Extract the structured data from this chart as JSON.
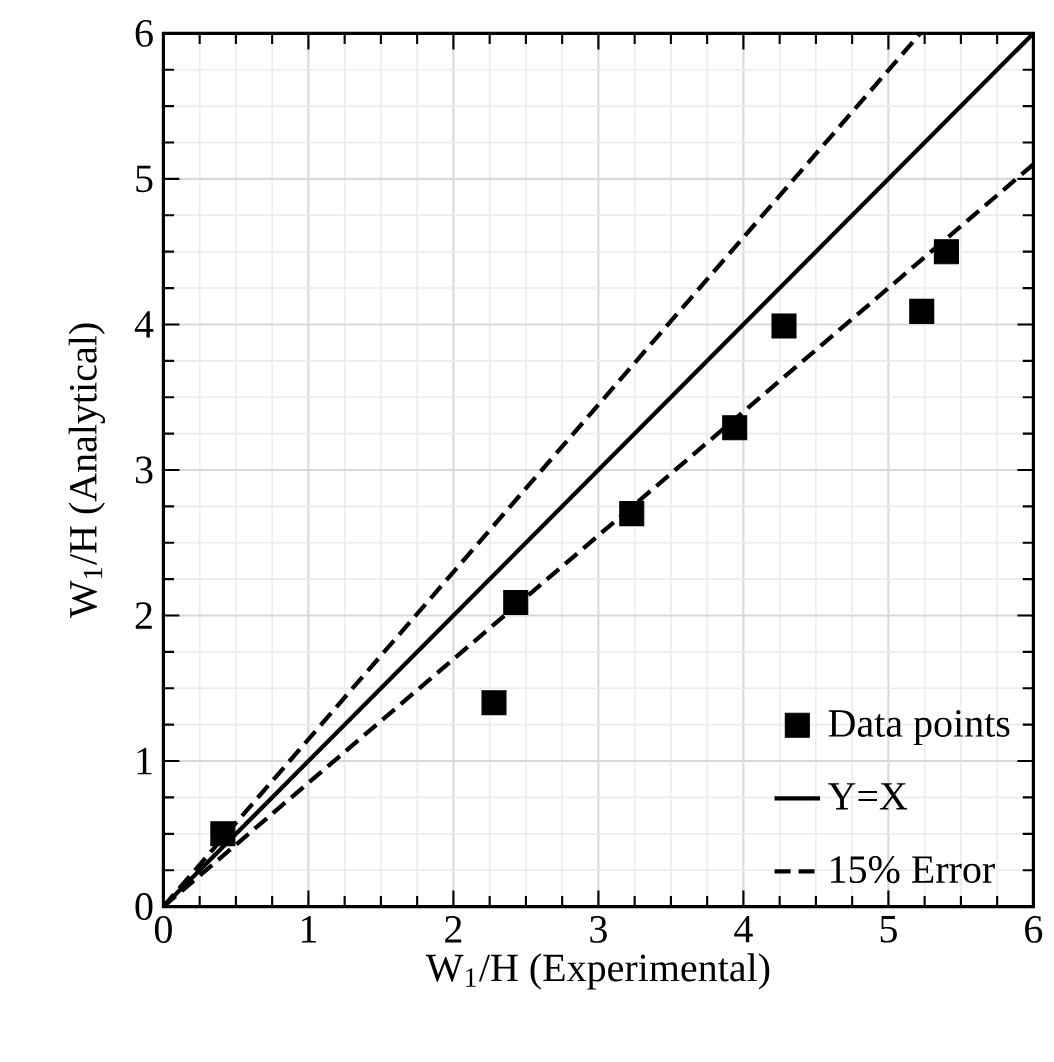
{
  "chart_data": {
    "type": "scatter",
    "xlabel": "W$_{1}$/H (Experimental)",
    "ylabel": "W$_{1}$/H (Analytical)",
    "xlim": [
      0,
      6
    ],
    "ylim": [
      0,
      6
    ],
    "xticks": [
      0,
      1,
      2,
      3,
      4,
      5,
      6
    ],
    "yticks": [
      0,
      1,
      2,
      3,
      4,
      5,
      6
    ],
    "grid": true,
    "legend": "bottom right",
    "series": [
      {
        "name": "Data points",
        "marker": "square",
        "color": "#000000",
        "x": [
          0.41,
          2.28,
          2.43,
          3.23,
          3.94,
          4.28,
          5.23,
          5.4
        ],
        "values": [
          0.5,
          1.4,
          2.09,
          2.7,
          3.29,
          3.99,
          4.09,
          4.5
        ]
      },
      {
        "name": "Y=X",
        "type": "line",
        "line_style": "solid",
        "color": "#000000",
        "x": [
          0,
          6
        ],
        "values": [
          0,
          6
        ]
      },
      {
        "name": "15% Error",
        "type": "line",
        "line_style": "dashed",
        "color": "#000000",
        "x": [
          0,
          5.22
        ],
        "values": [
          0,
          6
        ]
      },
      {
        "type": "line",
        "line_style": "dashed",
        "color": "#000000",
        "x": [
          0,
          6
        ],
        "values": [
          0,
          5.1
        ]
      }
    ]
  }
}
